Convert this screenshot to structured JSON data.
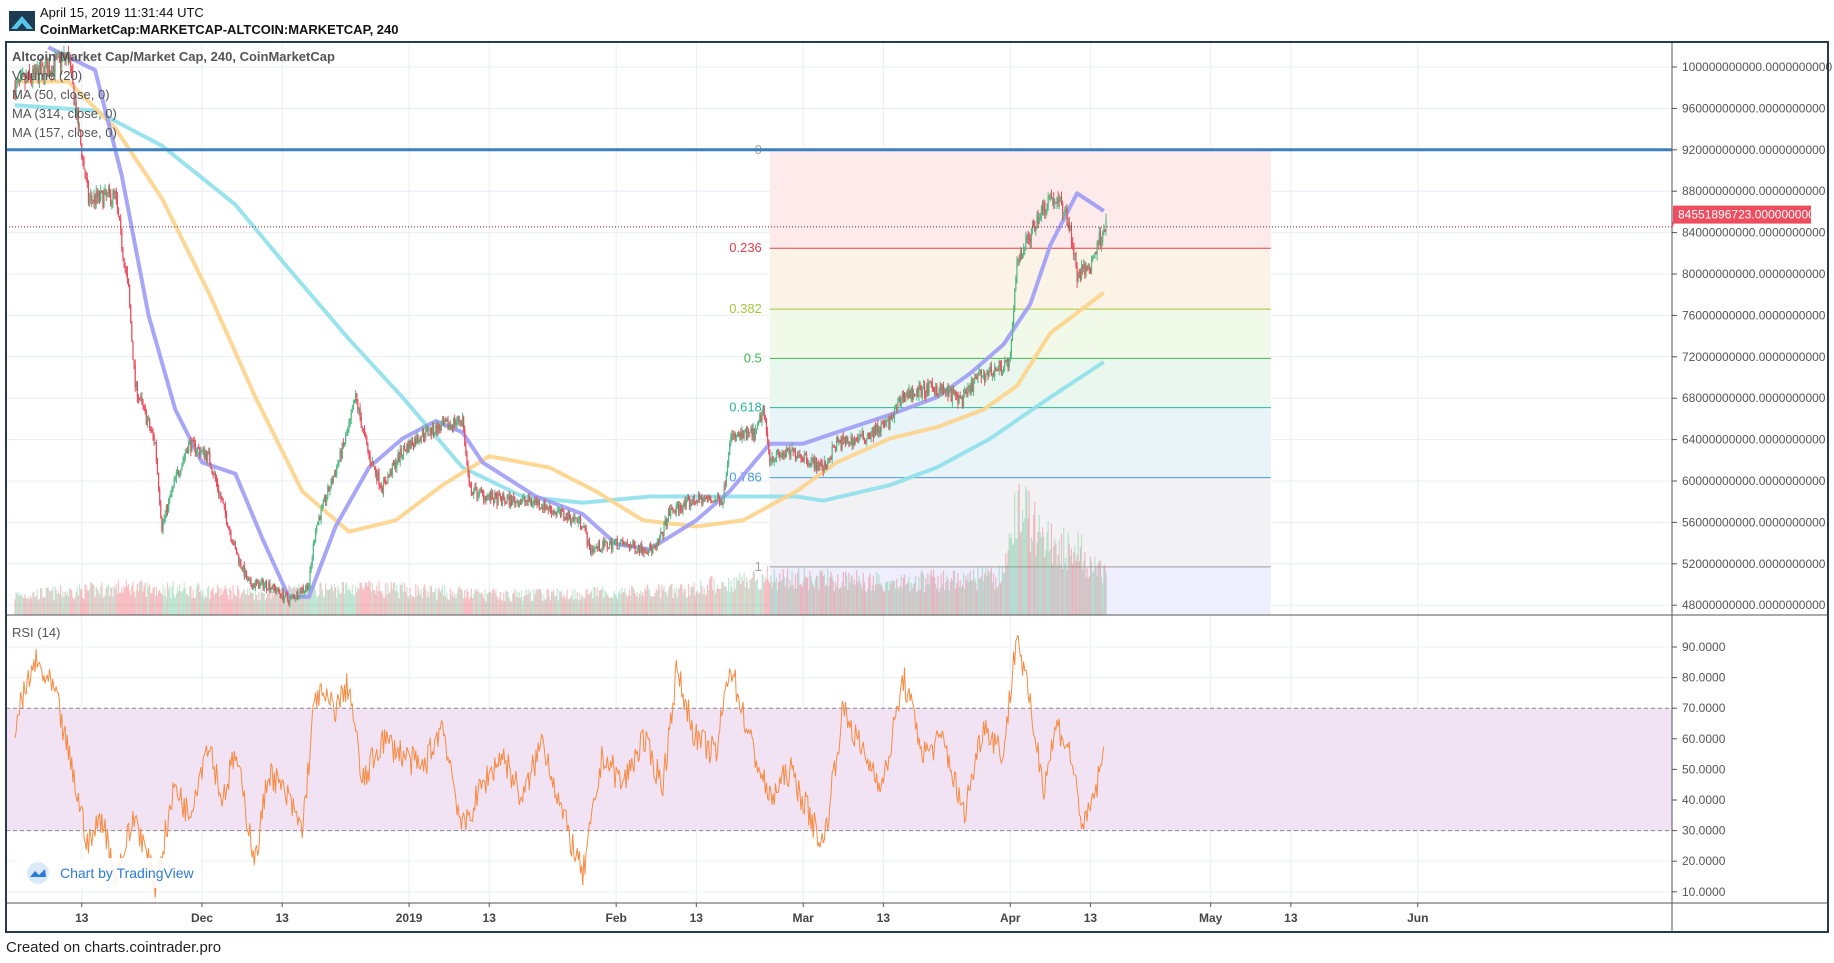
{
  "header": {
    "timestamp": "April 15, 2019 11:31:44 UTC",
    "symbol": "CoinMarketCap:MARKETCAP-ALTCOIN:MARKETCAP, 240"
  },
  "legend": {
    "title": "Altcoin Market Cap/Market Cap, 240, CoinMarketCap",
    "volume": "Volume (20)",
    "ma50": "MA (50, close, 0)",
    "ma314": "MA (314, close, 0)",
    "ma157": "MA (157, close, 0)",
    "rsi": "RSI (14)"
  },
  "badge": {
    "text": "Chart by TradingView",
    "icon": "tradingview-cloud-icon"
  },
  "footer": {
    "text": "Created on charts.cointrader.pro"
  },
  "colors": {
    "up": "#53b987",
    "down": "#eb4d5c",
    "ma50": "#9e9cf5",
    "ma157": "#fdd38a",
    "ma314": "#8fe0ea",
    "hline": "#3d7fc1",
    "rsi": "#f68c43",
    "rsi_band": "#f1e3f3",
    "last_price": "#ee4d5f",
    "frame": "#263b4c"
  },
  "chart_data": [
    {
      "type": "candlestick",
      "interval": "240",
      "price_axis": {
        "ticks": [
          "100000000000.0000000000",
          "96000000000.0000000000",
          "92000000000.0000000000",
          "88000000000.0000000000",
          "84000000000.0000000000",
          "80000000000.0000000000",
          "76000000000.0000000000",
          "72000000000.0000000000",
          "68000000000.0000000000",
          "64000000000.0000000000",
          "60000000000.0000000000",
          "56000000000.0000000000",
          "52000000000.0000000000",
          "48000000000.0000000000"
        ],
        "tick_values": [
          100000000000.0,
          96000000000.0,
          92000000000.0,
          88000000000.0,
          84000000000.0,
          80000000000.0,
          76000000000.0,
          72000000000.0,
          68000000000.0,
          64000000000.0,
          60000000000.0,
          56000000000.0,
          52000000000.0,
          48000000000.0
        ],
        "range": [
          47000000000.0,
          102500000000.0
        ]
      },
      "time_axis": {
        "ticks": [
          {
            "label": "13",
            "date": "2018-11-13"
          },
          {
            "label": "Dec",
            "date": "2018-12-01"
          },
          {
            "label": "13",
            "date": "2018-12-13"
          },
          {
            "label": "2019",
            "date": "2019-01-01"
          },
          {
            "label": "13",
            "date": "2019-01-13"
          },
          {
            "label": "Feb",
            "date": "2019-02-01"
          },
          {
            "label": "13",
            "date": "2019-02-13"
          },
          {
            "label": "Mar",
            "date": "2019-03-01"
          },
          {
            "label": "13",
            "date": "2019-03-13"
          },
          {
            "label": "Apr",
            "date": "2019-04-01"
          },
          {
            "label": "13",
            "date": "2019-04-13"
          },
          {
            "label": "May",
            "date": "2019-05-01"
          },
          {
            "label": "13",
            "date": "2019-05-13"
          },
          {
            "label": "Jun",
            "date": "2019-06-01"
          }
        ]
      },
      "last_price": {
        "value": 84551896723,
        "label": "84551896723.0000000000"
      },
      "horizontal_line": 92000000000.0,
      "close_path": [
        [
          "2018-11-03",
          98000000000.0
        ],
        [
          "2018-11-11",
          101000000000.0
        ],
        [
          "2018-11-14",
          87200000000.0
        ],
        [
          "2018-11-18",
          87500000000.0
        ],
        [
          "2018-11-20",
          78300000000.0
        ],
        [
          "2018-11-21",
          69200000000.0
        ],
        [
          "2018-11-24",
          63600000000.0
        ],
        [
          "2018-11-25",
          55600000000.0
        ],
        [
          "2018-11-27",
          60100000000.0
        ],
        [
          "2018-11-29",
          63600000000.0
        ],
        [
          "2018-12-02",
          62400000000.0
        ],
        [
          "2018-12-04",
          57900000000.0
        ],
        [
          "2018-12-06",
          53300000000.0
        ],
        [
          "2018-12-08",
          50000000000.0
        ],
        [
          "2018-12-11",
          50000000000.0
        ],
        [
          "2018-12-14",
          48500000000.0
        ],
        [
          "2018-12-17",
          50000000000.0
        ],
        [
          "2018-12-18",
          55500000000.0
        ],
        [
          "2018-12-21",
          61000000000.0
        ],
        [
          "2018-12-23",
          65100000000.0
        ],
        [
          "2018-12-24",
          68000000000.0
        ],
        [
          "2018-12-26",
          62400000000.0
        ],
        [
          "2018-12-28",
          59400000000.0
        ],
        [
          "2018-12-31",
          62900000000.0
        ],
        [
          "2019-01-03",
          64600000000.0
        ],
        [
          "2019-01-07",
          65400000000.0
        ],
        [
          "2019-01-09",
          66000000000.0
        ],
        [
          "2019-01-10",
          59200000000.0
        ],
        [
          "2019-01-14",
          58200000000.0
        ],
        [
          "2019-01-20",
          58000000000.0
        ],
        [
          "2019-01-23",
          57000000000.0
        ],
        [
          "2019-01-27",
          56000000000.0
        ],
        [
          "2019-01-28",
          53400000000.0
        ],
        [
          "2019-02-01",
          54000000000.0
        ],
        [
          "2019-02-05",
          53500000000.0
        ],
        [
          "2019-02-07",
          53400000000.0
        ],
        [
          "2019-02-09",
          57000000000.0
        ],
        [
          "2019-02-13",
          58200000000.0
        ],
        [
          "2019-02-17",
          58200000000.0
        ],
        [
          "2019-02-18",
          64100000000.0
        ],
        [
          "2019-02-22",
          64600000000.0
        ],
        [
          "2019-02-23",
          67000000000.0
        ],
        [
          "2019-02-24",
          62300000000.0
        ],
        [
          "2019-02-28",
          62800000000.0
        ],
        [
          "2019-03-04",
          61200000000.0
        ],
        [
          "2019-03-06",
          63600000000.0
        ],
        [
          "2019-03-10",
          64200000000.0
        ],
        [
          "2019-03-14",
          65700000000.0
        ],
        [
          "2019-03-16",
          68300000000.0
        ],
        [
          "2019-03-21",
          69000000000.0
        ],
        [
          "2019-03-25",
          67800000000.0
        ],
        [
          "2019-03-27",
          70000000000.0
        ],
        [
          "2019-03-29",
          70500000000.0
        ],
        [
          "2019-04-01",
          71500000000.0
        ],
        [
          "2019-04-02",
          81300000000.0
        ],
        [
          "2019-04-04",
          83800000000.0
        ],
        [
          "2019-04-05",
          85400000000.0
        ],
        [
          "2019-04-07",
          87500000000.0
        ],
        [
          "2019-04-09",
          86400000000.0
        ],
        [
          "2019-04-10",
          84300000000.0
        ],
        [
          "2019-04-11",
          79800000000.0
        ],
        [
          "2019-04-13",
          80800000000.0
        ],
        [
          "2019-04-15",
          84550000000.0
        ]
      ],
      "ma50": [
        [
          "2018-11-08",
          101900000000.0
        ],
        [
          "2018-11-15",
          99700000000.0
        ],
        [
          "2018-11-19",
          89500000000.0
        ],
        [
          "2018-11-23",
          76000000000.0
        ],
        [
          "2018-11-27",
          66900000000.0
        ],
        [
          "2018-12-01",
          61800000000.0
        ],
        [
          "2018-12-06",
          60700000000.0
        ],
        [
          "2018-12-10",
          54500000000.0
        ],
        [
          "2018-12-14",
          48800000000.0
        ],
        [
          "2018-12-17",
          48800000000.0
        ],
        [
          "2018-12-21",
          55600000000.0
        ],
        [
          "2018-12-26",
          61300000000.0
        ],
        [
          "2018-12-31",
          64100000000.0
        ],
        [
          "2019-01-05",
          65800000000.0
        ],
        [
          "2019-01-09",
          64700000000.0
        ],
        [
          "2019-01-12",
          61800000000.0
        ],
        [
          "2019-01-20",
          58500000000.0
        ],
        [
          "2019-01-27",
          56800000000.0
        ],
        [
          "2019-02-01",
          53900000000.0
        ],
        [
          "2019-02-06",
          53400000000.0
        ],
        [
          "2019-02-13",
          56200000000.0
        ],
        [
          "2019-02-18",
          59000000000.0
        ],
        [
          "2019-02-24",
          63600000000.0
        ],
        [
          "2019-03-01",
          63600000000.0
        ],
        [
          "2019-03-06",
          64700000000.0
        ],
        [
          "2019-03-14",
          66400000000.0
        ],
        [
          "2019-03-21",
          68100000000.0
        ],
        [
          "2019-03-26",
          70400000000.0
        ],
        [
          "2019-03-31",
          73200000000.0
        ],
        [
          "2019-04-04",
          77100000000.0
        ],
        [
          "2019-04-07",
          82800000000.0
        ],
        [
          "2019-04-11",
          87800000000.0
        ],
        [
          "2019-04-15",
          86100000000.0
        ]
      ],
      "ma157": [
        [
          "2018-11-03",
          98600000000.0
        ],
        [
          "2018-11-11",
          98600000000.0
        ],
        [
          "2018-11-18",
          94100000000.0
        ],
        [
          "2018-11-25",
          87300000000.0
        ],
        [
          "2018-12-02",
          78200000000.0
        ],
        [
          "2018-12-09",
          68100000000.0
        ],
        [
          "2018-12-16",
          59000000000.0
        ],
        [
          "2018-12-23",
          55100000000.0
        ],
        [
          "2018-12-30",
          56200000000.0
        ],
        [
          "2019-01-06",
          59600000000.0
        ],
        [
          "2019-01-13",
          62400000000.0
        ],
        [
          "2019-01-22",
          61300000000.0
        ],
        [
          "2019-01-29",
          59000000000.0
        ],
        [
          "2019-02-05",
          56200000000.0
        ],
        [
          "2019-02-13",
          55600000000.0
        ],
        [
          "2019-02-20",
          56200000000.0
        ],
        [
          "2019-02-28",
          59000000000.0
        ],
        [
          "2019-03-06",
          61800000000.0
        ],
        [
          "2019-03-14",
          64100000000.0
        ],
        [
          "2019-03-21",
          65200000000.0
        ],
        [
          "2019-03-28",
          66900000000.0
        ],
        [
          "2019-04-02",
          69200000000.0
        ],
        [
          "2019-04-07",
          74300000000.0
        ],
        [
          "2019-04-15",
          78200000000.0
        ]
      ],
      "ma314": [
        [
          "2018-11-03",
          96300000000.0
        ],
        [
          "2018-11-15",
          95800000000.0
        ],
        [
          "2018-11-25",
          92400000000.0
        ],
        [
          "2018-12-06",
          86700000000.0
        ],
        [
          "2018-12-14",
          80500000000.0
        ],
        [
          "2018-12-23",
          73700000000.0
        ],
        [
          "2018-12-31",
          68100000000.0
        ],
        [
          "2019-01-09",
          61300000000.0
        ],
        [
          "2019-01-18",
          58500000000.0
        ],
        [
          "2019-01-27",
          57900000000.0
        ],
        [
          "2019-02-06",
          58500000000.0
        ],
        [
          "2019-02-17",
          58500000000.0
        ],
        [
          "2019-02-28",
          58500000000.0
        ],
        [
          "2019-03-04",
          58100000000.0
        ],
        [
          "2019-03-14",
          59600000000.0
        ],
        [
          "2019-03-21",
          61300000000.0
        ],
        [
          "2019-03-29",
          64100000000.0
        ],
        [
          "2019-04-07",
          68100000000.0
        ],
        [
          "2019-04-15",
          71500000000.0
        ]
      ],
      "volume_profile": [
        [
          "2018-11-03",
          0.18
        ],
        [
          "2018-11-20",
          0.25
        ],
        [
          "2018-12-10",
          0.2
        ],
        [
          "2018-12-24",
          0.25
        ],
        [
          "2019-01-15",
          0.18
        ],
        [
          "2019-02-10",
          0.22
        ],
        [
          "2019-02-23",
          0.35
        ],
        [
          "2019-03-15",
          0.3
        ],
        [
          "2019-03-31",
          0.35
        ],
        [
          "2019-04-02",
          1.0
        ],
        [
          "2019-04-07",
          0.65
        ],
        [
          "2019-04-11",
          0.6
        ],
        [
          "2019-04-15",
          0.35
        ]
      ],
      "fib_retracement": {
        "price_0": 92000000000.0,
        "price_1": 51700000000.0,
        "start": "2019-02-24",
        "end": "2019-05-10",
        "levels": [
          {
            "label": "0",
            "ratio": 0,
            "color": "#9e9e9e",
            "fill": "#fdeaea"
          },
          {
            "label": "0.236",
            "ratio": 0.236,
            "color": "#e2424d",
            "fill": "#fbf4e6"
          },
          {
            "label": "0.382",
            "ratio": 0.382,
            "color": "#a4c639",
            "fill": "#f1f9e9"
          },
          {
            "label": "0.5",
            "ratio": 0.5,
            "color": "#3dbb48",
            "fill": "#e9f7ef"
          },
          {
            "label": "0.618",
            "ratio": 0.618,
            "color": "#2bb59a",
            "fill": "#e8f4f8"
          },
          {
            "label": "0.786",
            "ratio": 0.786,
            "color": "#4a9be0",
            "fill": "#f2f2f4"
          },
          {
            "label": "1",
            "ratio": 1,
            "color": "#9e9e9e",
            "fill": "#eeeefc"
          }
        ]
      }
    },
    {
      "type": "line",
      "name": "RSI (14)",
      "y_axis": {
        "ticks": [
          "90.0000",
          "80.0000",
          "70.0000",
          "60.0000",
          "50.0000",
          "40.0000",
          "30.0000",
          "20.0000",
          "10.0000"
        ],
        "tick_values": [
          90,
          80,
          70,
          60,
          50,
          40,
          30,
          20,
          10
        ]
      },
      "band": [
        30,
        70
      ],
      "values": [
        [
          "2018-11-03",
          65
        ],
        [
          "2018-11-06",
          85
        ],
        [
          "2018-11-09",
          75
        ],
        [
          "2018-11-12",
          45
        ],
        [
          "2018-11-14",
          25
        ],
        [
          "2018-11-16",
          35
        ],
        [
          "2018-11-18",
          15
        ],
        [
          "2018-11-21",
          35
        ],
        [
          "2018-11-24",
          12
        ],
        [
          "2018-11-27",
          45
        ],
        [
          "2018-11-29",
          35
        ],
        [
          "2018-12-02",
          60
        ],
        [
          "2018-12-04",
          40
        ],
        [
          "2018-12-06",
          55
        ],
        [
          "2018-12-09",
          20
        ],
        [
          "2018-12-11",
          50
        ],
        [
          "2018-12-14",
          40
        ],
        [
          "2018-12-16",
          30
        ],
        [
          "2018-12-18",
          75
        ],
        [
          "2018-12-21",
          70
        ],
        [
          "2018-12-23",
          78
        ],
        [
          "2018-12-25",
          45
        ],
        [
          "2018-12-28",
          60
        ],
        [
          "2018-12-31",
          55
        ],
        [
          "2019-01-03",
          50
        ],
        [
          "2019-01-06",
          65
        ],
        [
          "2019-01-09",
          30
        ],
        [
          "2019-01-12",
          45
        ],
        [
          "2019-01-15",
          55
        ],
        [
          "2019-01-18",
          40
        ],
        [
          "2019-01-21",
          60
        ],
        [
          "2019-01-24",
          35
        ],
        [
          "2019-01-27",
          15
        ],
        [
          "2019-01-30",
          55
        ],
        [
          "2019-02-02",
          45
        ],
        [
          "2019-02-05",
          60
        ],
        [
          "2019-02-08",
          45
        ],
        [
          "2019-02-10",
          82
        ],
        [
          "2019-02-13",
          60
        ],
        [
          "2019-02-16",
          55
        ],
        [
          "2019-02-18",
          85
        ],
        [
          "2019-02-21",
          60
        ],
        [
          "2019-02-24",
          40
        ],
        [
          "2019-02-27",
          50
        ],
        [
          "2019-03-02",
          35
        ],
        [
          "2019-03-04",
          25
        ],
        [
          "2019-03-07",
          70
        ],
        [
          "2019-03-10",
          55
        ],
        [
          "2019-03-13",
          45
        ],
        [
          "2019-03-16",
          80
        ],
        [
          "2019-03-19",
          55
        ],
        [
          "2019-03-22",
          60
        ],
        [
          "2019-03-25",
          35
        ],
        [
          "2019-03-28",
          65
        ],
        [
          "2019-03-31",
          55
        ],
        [
          "2019-04-02",
          95
        ],
        [
          "2019-04-04",
          70
        ],
        [
          "2019-04-06",
          45
        ],
        [
          "2019-04-08",
          65
        ],
        [
          "2019-04-10",
          55
        ],
        [
          "2019-04-12",
          30
        ],
        [
          "2019-04-14",
          45
        ],
        [
          "2019-04-15",
          55
        ]
      ]
    }
  ]
}
